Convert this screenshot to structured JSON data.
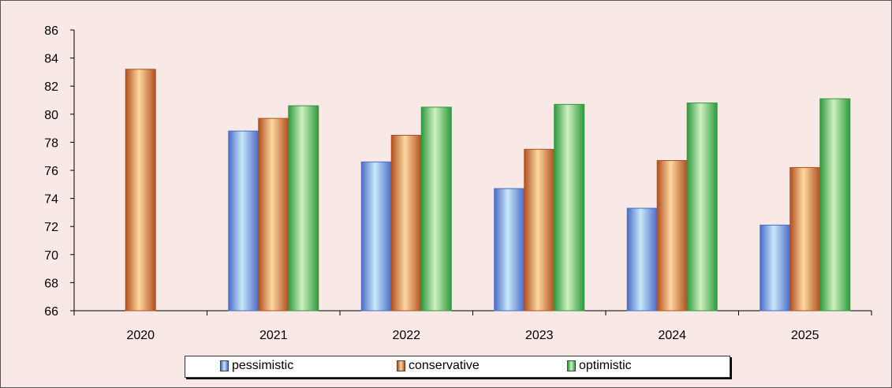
{
  "chart_data": {
    "type": "bar",
    "categories": [
      "2020",
      "2021",
      "2022",
      "2023",
      "2024",
      "2025"
    ],
    "series": [
      {
        "name": "pessimistic",
        "values": [
          null,
          78.8,
          76.6,
          74.7,
          73.3,
          72.1
        ],
        "color": "#4a6cc8",
        "light": "#c8e8f8"
      },
      {
        "name": "conservative",
        "values": [
          83.2,
          79.7,
          78.5,
          77.5,
          76.7,
          76.2
        ],
        "color": "#b05020",
        "light": "#ffd8a0"
      },
      {
        "name": "optimistic",
        "values": [
          null,
          80.6,
          80.5,
          80.7,
          80.8,
          81.1
        ],
        "color": "#2e9a3e",
        "light": "#d0f0c0"
      }
    ],
    "yticks": [
      "66",
      "68",
      "70",
      "72",
      "74",
      "76",
      "78",
      "80",
      "82",
      "84",
      "86"
    ],
    "ylim": [
      66,
      86
    ],
    "title": "",
    "xlabel": "",
    "ylabel": "",
    "legend_position": "bottom",
    "grid": false
  }
}
